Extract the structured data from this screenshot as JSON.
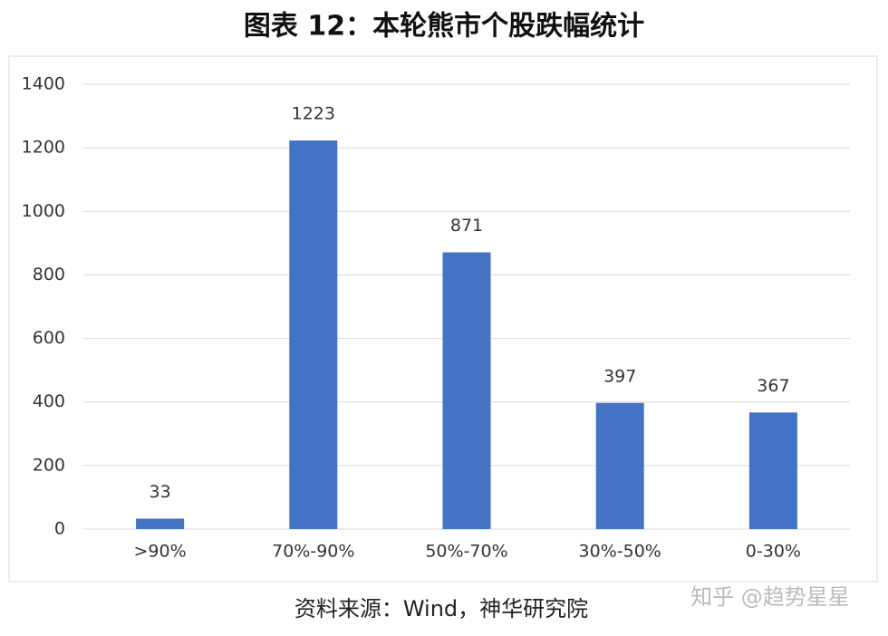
{
  "chart_data": {
    "type": "bar",
    "title": "图表 12：本轮熊市个股跌幅统计",
    "categories": [
      ">90%",
      "70%-90%",
      "50%-70%",
      "30%-50%",
      "0-30%"
    ],
    "values": [
      33,
      1223,
      871,
      397,
      367
    ],
    "color": "#4472c4",
    "ylim": [
      0,
      1400
    ],
    "yticks": [
      0,
      200,
      400,
      600,
      800,
      1000,
      1200,
      1400
    ],
    "grid": true,
    "source": "资料来源：Wind，神华研究院",
    "watermark": "知乎 @趋势星星"
  }
}
